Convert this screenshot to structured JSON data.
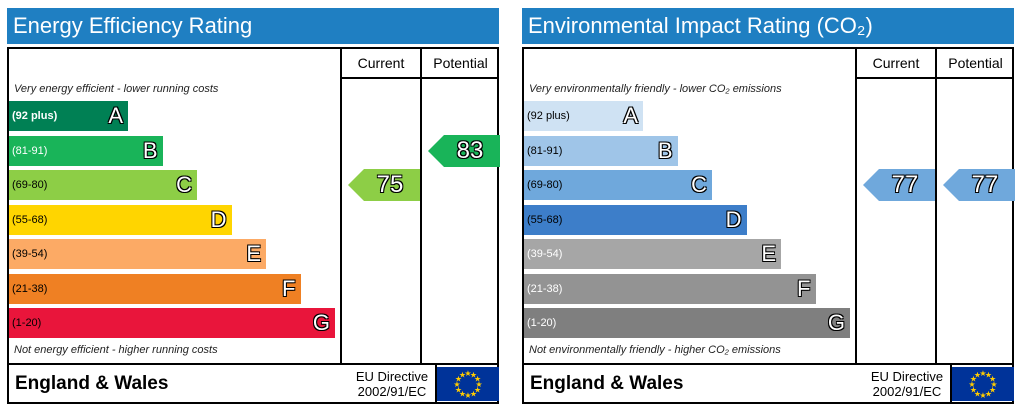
{
  "chart_data": [
    {
      "type": "bar",
      "title": "Energy Efficiency Rating",
      "columns": [
        "Current",
        "Potential"
      ],
      "top_note": "Very energy efficient - lower running costs",
      "bottom_note": "Not energy efficient - higher running costs",
      "bands": [
        {
          "range": "(92 plus)",
          "letter": "A",
          "color": "#008054",
          "range_color": "#ffffff"
        },
        {
          "range": "(81-91)",
          "letter": "B",
          "color": "#19b459",
          "range_color": "#ffffff"
        },
        {
          "range": "(69-80)",
          "letter": "C",
          "color": "#8dce46",
          "range_color": "#000000"
        },
        {
          "range": "(55-68)",
          "letter": "D",
          "color": "#ffd500",
          "range_color": "#000000"
        },
        {
          "range": "(39-54)",
          "letter": "E",
          "color": "#fcaa65",
          "range_color": "#000000"
        },
        {
          "range": "(21-38)",
          "letter": "F",
          "color": "#ef8023",
          "range_color": "#000000"
        },
        {
          "range": "(1-20)",
          "letter": "G",
          "color": "#e9153b",
          "range_color": "#000000"
        }
      ],
      "current": {
        "value": "75",
        "band": "C",
        "color": "#8dce46"
      },
      "potential": {
        "value": "83",
        "band": "B",
        "color": "#19b459"
      },
      "footer": {
        "country": "England & Wales",
        "directive_line1": "EU Directive",
        "directive_line2": "2002/91/EC"
      }
    },
    {
      "type": "bar",
      "title": "Environmental Impact Rating (CO₂)",
      "columns": [
        "Current",
        "Potential"
      ],
      "top_note": "Very environmentally friendly - lower CO₂ emissions",
      "bottom_note": "Not environmentally friendly - higher CO₂ emissions",
      "bands": [
        {
          "range": "(92 plus)",
          "letter": "A",
          "color": "#cfe2f3",
          "range_color": "#000000"
        },
        {
          "range": "(81-91)",
          "letter": "B",
          "color": "#9fc5e8",
          "range_color": "#000000"
        },
        {
          "range": "(69-80)",
          "letter": "C",
          "color": "#6fa8dc",
          "range_color": "#000000"
        },
        {
          "range": "(55-68)",
          "letter": "D",
          "color": "#3d7ec9",
          "range_color": "#000000"
        },
        {
          "range": "(39-54)",
          "letter": "E",
          "color": "#a6a6a6",
          "range_color": "#ffffff"
        },
        {
          "range": "(21-38)",
          "letter": "F",
          "color": "#939393",
          "range_color": "#ffffff"
        },
        {
          "range": "(1-20)",
          "letter": "G",
          "color": "#7f7f7f",
          "range_color": "#ffffff"
        }
      ],
      "current": {
        "value": "77",
        "band": "C",
        "color": "#6fa8dc"
      },
      "potential": {
        "value": "77",
        "band": "C",
        "color": "#6fa8dc"
      },
      "footer": {
        "country": "England & Wales",
        "directive_line1": "EU Directive",
        "directive_line2": "2002/91/EC"
      }
    }
  ]
}
